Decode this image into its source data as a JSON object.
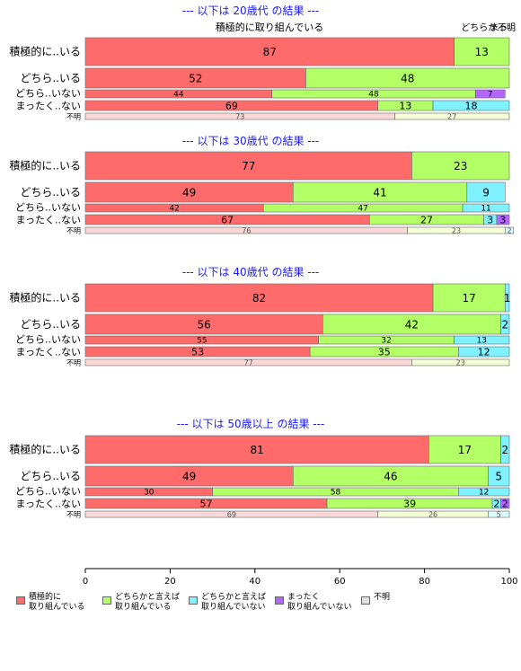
{
  "chart_data": {
    "type": "bar",
    "orientation": "horizontal",
    "stacked": true,
    "xlim": [
      0,
      100
    ],
    "x_ticks": [
      "0",
      "20",
      "40",
      "60",
      "80",
      "100"
    ],
    "response_categories": [
      "積極的に\n取り組んでいる",
      "どちらかと言えば\n取り組んでいる",
      "どちらかと言えば\n取り組んでいない",
      "まったく\n取り組んでいない",
      "不明"
    ],
    "colors": [
      "#ff6b6b",
      "#b3ff66",
      "#80f2ff",
      "#b266ff",
      "#e0e0e0"
    ],
    "top_header_labels": [
      "積極的に取り組んでいる",
      "どちらか...",
      "まっ...",
      "不明"
    ],
    "panels": [
      {
        "title": "--- 以下は 20歳代 の結果 ---",
        "rows": [
          {
            "label": "積極的に..いる",
            "values": [
              87,
              13,
              0,
              0,
              0
            ]
          },
          {
            "label": "どちら..いる",
            "values": [
              52,
              48,
              0,
              0,
              0
            ]
          },
          {
            "label": "どちら..いない",
            "values": [
              44,
              48,
              0,
              7,
              0
            ]
          },
          {
            "label": "まったく..ない",
            "values": [
              69,
              13,
              18,
              0,
              0
            ]
          },
          {
            "label": "不明",
            "values": [
              73,
              27,
              0,
              0,
              0
            ]
          }
        ]
      },
      {
        "title": "--- 以下は 30歳代 の結果 ---",
        "rows": [
          {
            "label": "積極的に..いる",
            "values": [
              77,
              23,
              0,
              0,
              0
            ]
          },
          {
            "label": "どちら..いる",
            "values": [
              49,
              41,
              9,
              0,
              0
            ]
          },
          {
            "label": "どちら..いない",
            "values": [
              42,
              47,
              11,
              0,
              0
            ]
          },
          {
            "label": "まったく..ない",
            "values": [
              67,
              27,
              3,
              3,
              0
            ]
          },
          {
            "label": "不明",
            "values": [
              76,
              23,
              2,
              0,
              0
            ]
          }
        ]
      },
      {
        "title": "--- 以下は 40歳代 の結果 ---",
        "rows": [
          {
            "label": "積極的に..いる",
            "values": [
              82,
              17,
              1,
              0,
              0
            ]
          },
          {
            "label": "どちら..いる",
            "values": [
              56,
              42,
              2,
              0,
              0
            ]
          },
          {
            "label": "どちら..いない",
            "values": [
              55,
              32,
              13,
              0,
              0
            ]
          },
          {
            "label": "まったく..ない",
            "values": [
              53,
              35,
              12,
              0,
              0
            ]
          },
          {
            "label": "不明",
            "values": [
              77,
              23,
              0,
              0,
              0
            ]
          }
        ]
      },
      {
        "title": "--- 以下は 50歳以上 の結果 ---",
        "rows": [
          {
            "label": "積極的に..いる",
            "values": [
              81,
              17,
              2,
              0,
              0
            ]
          },
          {
            "label": "どちら..いる",
            "values": [
              49,
              46,
              5,
              0,
              0
            ]
          },
          {
            "label": "どちら..いない",
            "values": [
              30,
              58,
              12,
              0,
              0
            ]
          },
          {
            "label": "まったく..ない",
            "values": [
              57,
              39,
              2,
              2,
              0
            ]
          },
          {
            "label": "不明",
            "values": [
              69,
              26,
              5,
              0,
              0
            ]
          }
        ]
      }
    ]
  }
}
